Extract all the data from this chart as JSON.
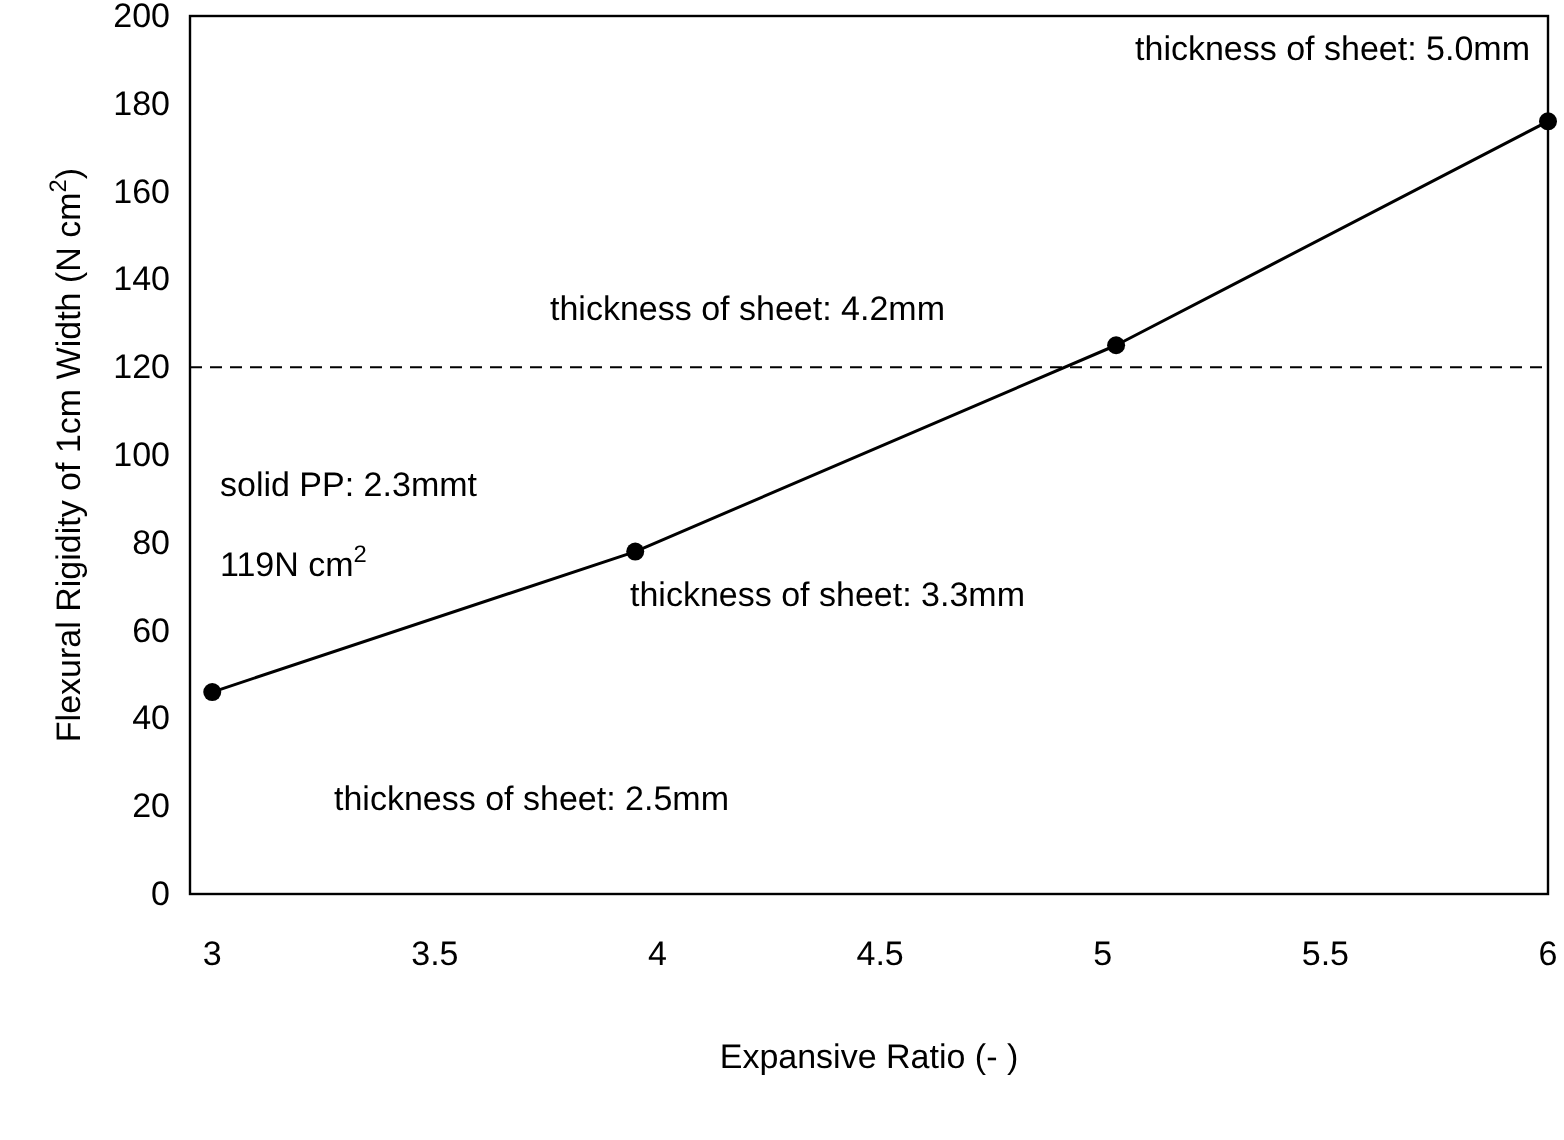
{
  "chart_data": {
    "type": "line",
    "xlabel": "Expansive Ratio (- )",
    "ylabel": "Flexural Rigidity of 1cm Width (N cm$^{2}$)",
    "x": [
      3,
      3.95,
      5.03,
      6
    ],
    "series": [
      {
        "color": "#000000",
        "values": [
          46,
          78,
          125,
          176
        ]
      }
    ],
    "marker": "circle",
    "line_style": "solid",
    "grid": false,
    "xlim": [
      2.95,
      6
    ],
    "xticks": [
      3,
      3.5,
      4,
      4.5,
      5,
      5.5,
      6
    ],
    "ylim": [
      0,
      200
    ],
    "yticks": [
      0,
      20,
      40,
      60,
      80,
      100,
      120,
      140,
      160,
      180,
      200
    ],
    "ref_lines": [
      {
        "axis": "y",
        "value": 120,
        "color": "#000000",
        "line_style": "dashed"
      }
    ],
    "annotations": [
      "thickness of sheet: 5.0mm",
      "thickness of sheet: 4.2mm",
      "thickness of sheet: 3.3mm",
      "thickness of sheet: 2.5mm",
      "solid PP: 2.3mmt",
      "119N cm$^{2}$"
    ]
  }
}
